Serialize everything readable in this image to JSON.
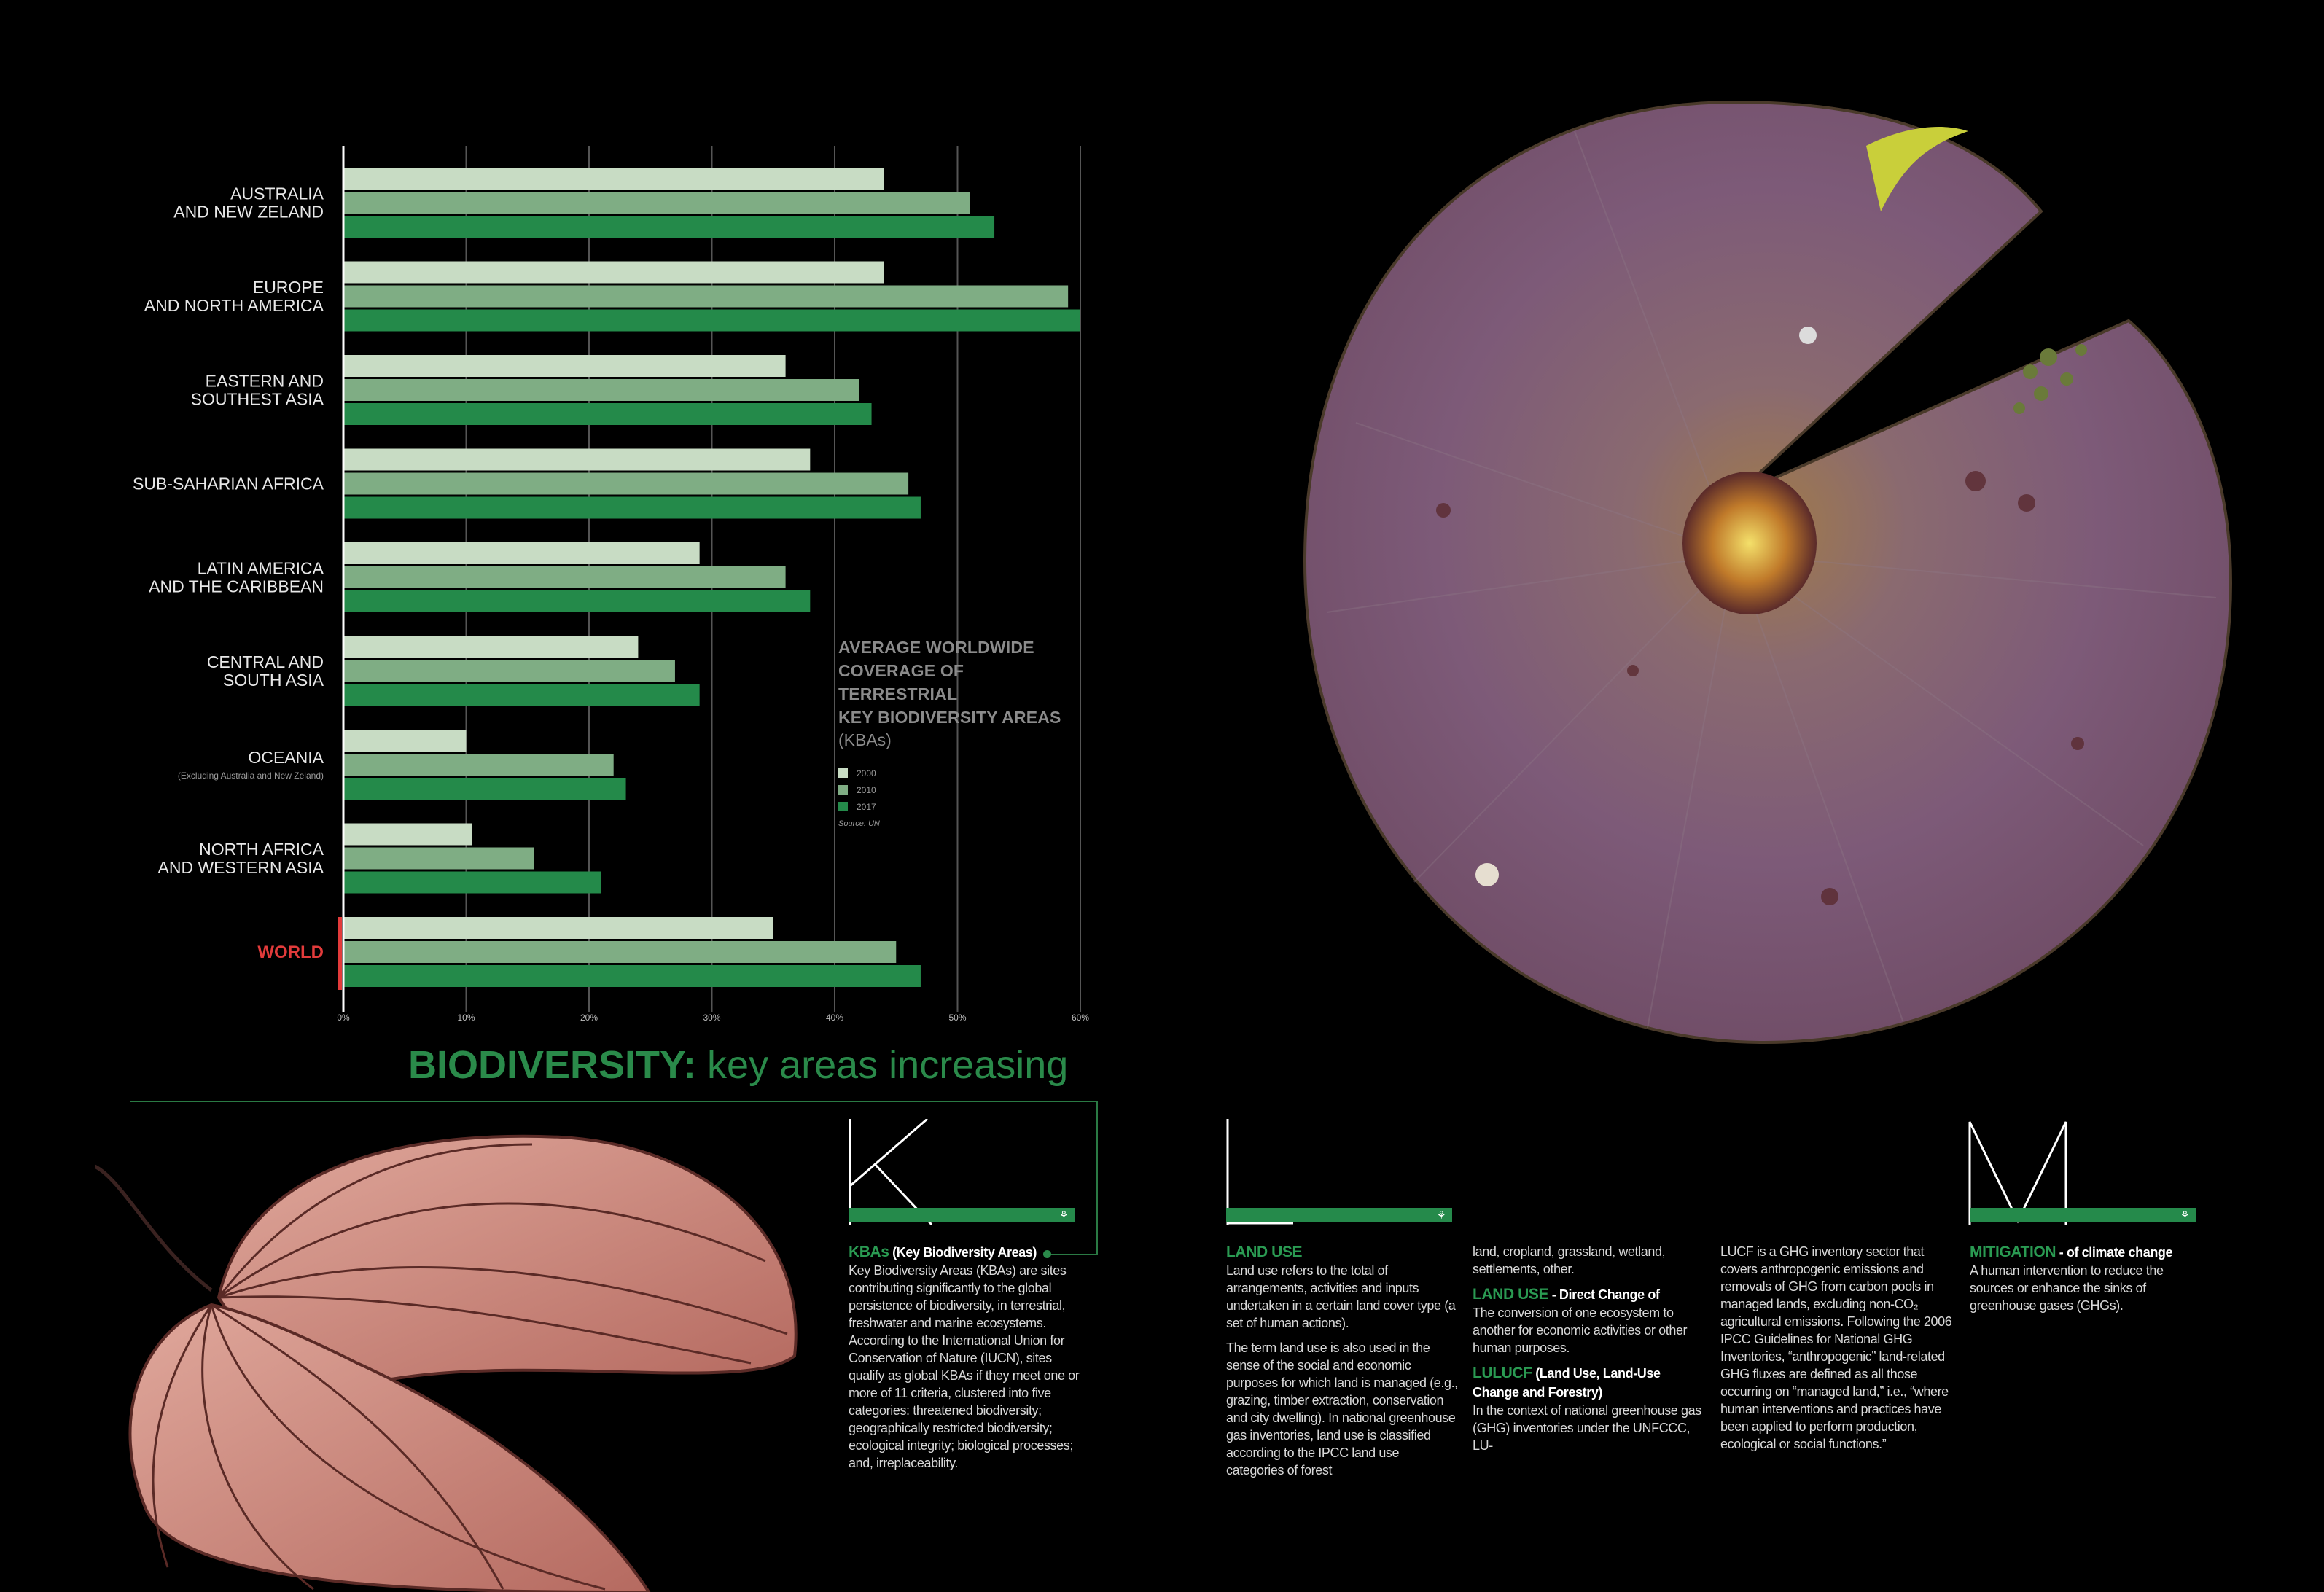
{
  "chart_data": {
    "type": "bar",
    "orientation": "horizontal",
    "title": "AVERAGE WORLDWIDE COVERAGE OF TERRESTRIAL KEY BIODIVERSITY AREAS",
    "title_lines": [
      "AVERAGE WORLDWIDE",
      "COVERAGE OF TERRESTRIAL",
      "KEY BIODIVERSITY AREAS"
    ],
    "subtitle": "(KBAs)",
    "source": "Source: UN",
    "categories": [
      {
        "lines": [
          "AUSTRALIA",
          "AND NEW ZELAND"
        ],
        "note": ""
      },
      {
        "lines": [
          "EUROPE",
          "AND NORTH AMERICA"
        ],
        "note": ""
      },
      {
        "lines": [
          "EASTERN AND",
          "SOUTHEST ASIA"
        ],
        "note": ""
      },
      {
        "lines": [
          "SUB-SAHARIAN AFRICA"
        ],
        "note": ""
      },
      {
        "lines": [
          "LATIN AMERICA",
          "AND THE CARIBBEAN"
        ],
        "note": ""
      },
      {
        "lines": [
          "CENTRAL AND",
          "SOUTH ASIA"
        ],
        "note": ""
      },
      {
        "lines": [
          "OCEANIA"
        ],
        "note": "(Excluding Australia and New Zeland)"
      },
      {
        "lines": [
          "NORTH AFRICA",
          "AND WESTERN ASIA"
        ],
        "note": ""
      },
      {
        "lines": [
          "WORLD"
        ],
        "note": "",
        "highlight": true
      }
    ],
    "series": [
      {
        "name": "2000",
        "color": "#c8dcc4",
        "values": [
          44,
          44,
          36,
          38,
          29,
          24,
          10,
          10.5,
          35
        ]
      },
      {
        "name": "2010",
        "color": "#7fad84",
        "values": [
          51,
          59,
          42,
          46,
          36,
          27,
          22,
          15.5,
          45
        ]
      },
      {
        "name": "2017",
        "color": "#248a4a",
        "values": [
          53,
          60,
          43,
          47,
          38,
          29,
          23,
          21,
          47
        ]
      }
    ],
    "xlim": [
      0,
      60
    ],
    "xticks": [
      "0%",
      "10%",
      "20%",
      "30%",
      "40%",
      "50%",
      "60%"
    ],
    "grid": true,
    "legend_position": "right-center",
    "highlight_color": "#e23b3b"
  },
  "headline": {
    "bold": "BIODIVERSITY:",
    "light": " key areas increasing"
  },
  "letters": {
    "k": "K",
    "l": "L",
    "m": "M"
  },
  "columns": {
    "kbas": {
      "heading": "KBAs",
      "heading_extra": " (Key Biodiversity Areas)",
      "text": "Key Biodiversity Areas (KBAs) are sites contributing significantly to the global persistence of biodiversity, in terrestrial, freshwater and marine ecosystems. According to the International Union for Conservation of Nature (IUCN), sites qualify as global KBAs if they meet one or more of 11 criteria, clustered into five categories: threatened biodiversity; geographically restricted biodiversity; ecological integrity; biological processes; and, irreplaceability."
    },
    "land_use": {
      "heading": "LAND USE",
      "p1": "Land use refers to the total of arrangements, activities and inputs undertaken in a certain land cover type (a set of human actions).",
      "p2": "The term land use is also used in the sense of the social and economic purposes for which land is managed (e.g., grazing, timber extraction, conservation and city dwelling). In national greenhouse gas inventories, land use is classified according to the IPCC land use categories of forest"
    },
    "col3": {
      "lead": "land, cropland, grassland, wetland, settlements, other.",
      "h2": "LAND USE",
      "h2_extra": " - Direct Change of",
      "p2": "The conversion of one ecosystem to another for economic activities or other human purposes.",
      "h3": "LULUCF",
      "h3_extra": " (Land Use, Land-Use Change and Forestry)",
      "p3": "In the context of national greenhouse gas (GHG) inventories under the UNFCCC, LU-"
    },
    "col4": {
      "text": "LUCF is a GHG inventory sector that covers anthropogenic emissions and removals of GHG from carbon pools in managed lands, excluding non-CO₂ agricultural emissions. Following the 2006 IPCC Guidelines for National GHG Inventories, “anthropogenic” land-related GHG fluxes are defined as all those occurring on “managed land,” i.e., “where human interventions and practices have been applied to perform production, ecological or social functions.”"
    },
    "mitigation": {
      "heading": "MITIGATION",
      "heading_extra": " - of climate change",
      "text": "A human intervention to reduce the sources or enhance the sinks of greenhouse gases (GHGs)."
    }
  }
}
